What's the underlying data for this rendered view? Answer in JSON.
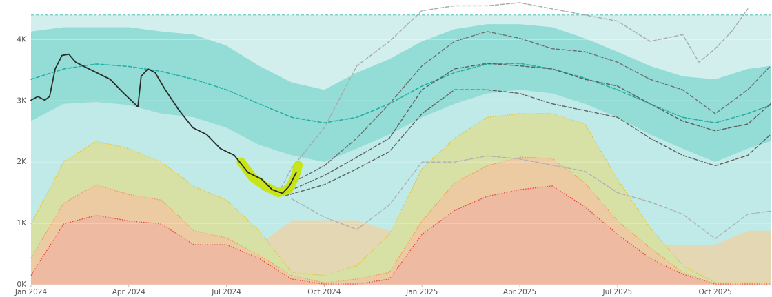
{
  "chart_data": {
    "type": "line",
    "xlim": [
      0,
      22.7
    ],
    "ylim": [
      0,
      4.42
    ],
    "grid": true,
    "xticks": [
      {
        "value": 0,
        "label": "Jan 2024"
      },
      {
        "value": 3,
        "label": "Apr 2024"
      },
      {
        "value": 6,
        "label": "Jul 2024"
      },
      {
        "value": 9,
        "label": "Oct 2024"
      },
      {
        "value": 12,
        "label": "Jan 2025"
      },
      {
        "value": 15,
        "label": "Apr 2025"
      },
      {
        "value": 18,
        "label": "Jul 2025"
      },
      {
        "value": 21,
        "label": "Oct 2025"
      }
    ],
    "yticks": [
      {
        "value": 0,
        "label": "0K"
      },
      {
        "value": 1,
        "label": "1K"
      },
      {
        "value": 2,
        "label": "2K"
      },
      {
        "value": 3,
        "label": "3K"
      },
      {
        "value": 4,
        "label": "4K"
      }
    ],
    "x": [
      0,
      1,
      2,
      3,
      4,
      5,
      6,
      7,
      8,
      9,
      10,
      11,
      12,
      13,
      14,
      15,
      16,
      17,
      18,
      19,
      20,
      21,
      22,
      22.7
    ],
    "series": [
      {
        "type": "area",
        "color": "#d2efee",
        "border": "#6cc9c2",
        "dash": "4 3",
        "values": [
          4.4,
          4.4,
          4.4,
          4.4,
          4.4,
          4.4,
          4.4,
          4.4,
          4.4,
          4.4,
          4.4,
          4.4,
          4.4,
          4.4,
          4.4,
          4.4,
          4.4,
          4.4,
          4.4,
          4.4,
          4.4,
          4.4,
          4.4,
          4.4
        ]
      },
      {
        "type": "area",
        "color": "#bfeae8",
        "values": [
          2.67,
          2.95,
          2.98,
          2.93,
          2.79,
          2.73,
          2.56,
          2.28,
          2.11,
          2.0,
          2.22,
          2.45,
          2.73,
          2.95,
          3.12,
          3.18,
          3.12,
          2.95,
          2.73,
          2.45,
          2.22,
          2.0,
          2.22,
          2.34
        ]
      },
      {
        "type": "band",
        "color": "#94ddd7",
        "low": [
          2.67,
          2.95,
          2.98,
          2.93,
          2.79,
          2.73,
          2.56,
          2.28,
          2.11,
          2.0,
          2.22,
          2.45,
          2.73,
          2.95,
          3.12,
          3.18,
          3.12,
          2.95,
          2.73,
          2.45,
          2.22,
          2.0,
          2.22,
          2.34
        ],
        "high": [
          4.13,
          4.2,
          4.2,
          4.2,
          4.13,
          4.08,
          3.9,
          3.57,
          3.3,
          3.18,
          3.46,
          3.68,
          3.97,
          4.17,
          4.25,
          4.25,
          4.2,
          4.02,
          3.8,
          3.57,
          3.4,
          3.35,
          3.52,
          3.57
        ]
      },
      {
        "type": "area",
        "color": "#e4d7b4",
        "values": [
          0.88,
          0.88,
          0.88,
          0.88,
          0.88,
          0.88,
          0.88,
          0.65,
          1.05,
          1.05,
          1.05,
          0.88,
          0.88,
          0.88,
          0.88,
          0.88,
          0.88,
          0.88,
          0.88,
          0.65,
          0.65,
          0.65,
          0.88,
          0.88
        ]
      },
      {
        "type": "area",
        "color": "#d7e1a6",
        "border": "#e3c23c",
        "dash": "1.5 2",
        "values": [
          0.99,
          2.0,
          2.34,
          2.22,
          2.0,
          1.6,
          1.38,
          0.88,
          0.2,
          0.15,
          0.31,
          0.82,
          1.89,
          2.39,
          2.73,
          2.79,
          2.79,
          2.62,
          1.72,
          0.93,
          0.31,
          0.03,
          0.03,
          0.03
        ]
      },
      {
        "type": "area",
        "color": "#eccaa2",
        "border": "#ef9c55",
        "dash": "1.5 2",
        "values": [
          0.43,
          1.33,
          1.63,
          1.47,
          1.38,
          0.88,
          0.76,
          0.48,
          0.15,
          0.03,
          0.09,
          0.2,
          1.04,
          1.66,
          1.94,
          2.08,
          2.06,
          1.66,
          1.04,
          0.6,
          0.2,
          0.01,
          0.01,
          0.01
        ]
      },
      {
        "type": "area",
        "color": "#efbaa2",
        "border": "#e0473f",
        "dash": "1.5 2",
        "values": [
          0.15,
          0.99,
          1.13,
          1.04,
          0.99,
          0.65,
          0.65,
          0.43,
          0.09,
          0.01,
          0.01,
          0.09,
          0.82,
          1.21,
          1.44,
          1.55,
          1.61,
          1.27,
          0.82,
          0.43,
          0.17,
          0.01,
          0.01,
          0.01
        ]
      },
      {
        "type": "line",
        "color": "#26b0a5",
        "width": 1.6,
        "dash": "5 3",
        "values": [
          3.35,
          3.52,
          3.6,
          3.56,
          3.48,
          3.35,
          3.18,
          2.95,
          2.73,
          2.64,
          2.73,
          2.95,
          3.24,
          3.46,
          3.6,
          3.61,
          3.52,
          3.37,
          3.18,
          2.95,
          2.73,
          2.64,
          2.79,
          2.93
        ]
      },
      {
        "type": "line",
        "color": "#a9a9a9",
        "width": 1.4,
        "dash": "5 3",
        "x": [
          7.6,
          8,
          9,
          10,
          11,
          12,
          13,
          14,
          15,
          16,
          17,
          18,
          19,
          20,
          20.5,
          21,
          21.5,
          22
        ],
        "values": [
          1.5,
          1.9,
          2.56,
          3.57,
          3.97,
          4.47,
          4.55,
          4.55,
          4.6,
          4.5,
          4.4,
          4.3,
          3.97,
          4.08,
          3.63,
          3.85,
          4.13,
          4.5
        ]
      },
      {
        "type": "line",
        "color": "#b0b0b0",
        "width": 1.4,
        "dash": "5 3",
        "x": [
          8,
          9,
          10,
          11,
          12,
          13,
          14,
          15,
          16,
          17,
          18,
          19,
          20,
          21,
          22,
          22.7
        ],
        "values": [
          1.4,
          1.1,
          0.9,
          1.3,
          2.0,
          2.0,
          2.1,
          2.05,
          1.95,
          1.85,
          1.5,
          1.35,
          1.15,
          0.75,
          1.15,
          1.2
        ]
      },
      {
        "type": "line",
        "color": "#6e6e6e",
        "width": 1.4,
        "dash": "5 3",
        "x": [
          7.8,
          9,
          10,
          11,
          12,
          13,
          14,
          15,
          16,
          17,
          18,
          19,
          20,
          21,
          22,
          22.7
        ],
        "values": [
          1.6,
          1.94,
          2.39,
          2.95,
          3.57,
          3.97,
          4.13,
          4.02,
          3.85,
          3.8,
          3.63,
          3.35,
          3.18,
          2.79,
          3.18,
          3.57
        ]
      },
      {
        "type": "line",
        "color": "#5e5e5e",
        "width": 1.4,
        "dash": "5 3",
        "x": [
          7.8,
          9,
          10,
          11,
          12,
          13,
          14,
          15,
          16,
          17,
          18,
          19,
          20,
          21,
          22,
          22.7
        ],
        "values": [
          1.5,
          1.78,
          2.08,
          2.39,
          3.18,
          3.52,
          3.61,
          3.57,
          3.52,
          3.35,
          3.24,
          2.95,
          2.67,
          2.51,
          2.62,
          2.95
        ]
      },
      {
        "type": "line",
        "color": "#606060",
        "width": 1.4,
        "dash": "5 3",
        "x": [
          7.8,
          9,
          10,
          11,
          12,
          13,
          14,
          15,
          16,
          17,
          18,
          19,
          20,
          21,
          22,
          22.7
        ],
        "values": [
          1.45,
          1.63,
          1.89,
          2.17,
          2.79,
          3.18,
          3.18,
          3.12,
          2.95,
          2.84,
          2.73,
          2.39,
          2.11,
          1.94,
          2.11,
          2.45
        ]
      },
      {
        "type": "line",
        "color": "#c8e400",
        "width": 13,
        "opacity": 0.9,
        "x": [
          6.45,
          6.8,
          7.2,
          7.6,
          7.9,
          8.1,
          8.2
        ],
        "values": [
          2.0,
          1.75,
          1.6,
          1.5,
          1.55,
          1.75,
          1.95
        ]
      },
      {
        "type": "line",
        "color": "#2b2b2b",
        "width": 1.8,
        "x": [
          0,
          0.21,
          0.42,
          0.57,
          0.74,
          0.95,
          1.16,
          1.37,
          1.59,
          2.01,
          2.43,
          2.85,
          3.07,
          3.28,
          3.38,
          3.59,
          3.81,
          4.12,
          4.55,
          4.97,
          5.39,
          5.81,
          6.24,
          6.66,
          7.08,
          7.4,
          7.72,
          7.93,
          8.14
        ],
        "values": [
          3.01,
          3.07,
          3.01,
          3.07,
          3.52,
          3.74,
          3.76,
          3.63,
          3.57,
          3.46,
          3.35,
          3.12,
          3.01,
          2.9,
          3.4,
          3.52,
          3.46,
          3.18,
          2.84,
          2.56,
          2.45,
          2.22,
          2.11,
          1.83,
          1.72,
          1.55,
          1.49,
          1.61,
          1.83
        ]
      }
    ]
  }
}
